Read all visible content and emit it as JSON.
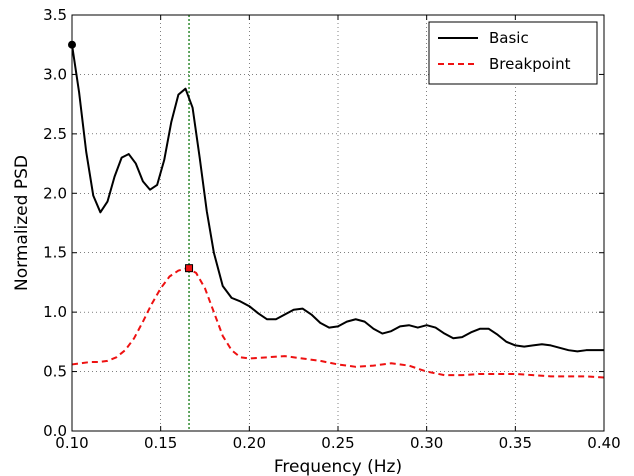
{
  "chart_data": {
    "type": "line",
    "title": "",
    "xlabel": "Frequency (Hz)",
    "ylabel": "Normalized PSD",
    "xlim": [
      0.1,
      0.4
    ],
    "ylim": [
      0.0,
      3.5
    ],
    "xticks": [
      0.1,
      0.15,
      0.2,
      0.25,
      0.3,
      0.35,
      0.4
    ],
    "xtick_labels": [
      "0.10",
      "0.15",
      "0.20",
      "0.25",
      "0.30",
      "0.35",
      "0.40"
    ],
    "yticks": [
      0.0,
      0.5,
      1.0,
      1.5,
      2.0,
      2.5,
      3.0,
      3.5
    ],
    "ytick_labels": [
      "0.0",
      "0.5",
      "1.0",
      "1.5",
      "2.0",
      "2.5",
      "3.0",
      "3.5"
    ],
    "grid": true,
    "legend_position": "top-right",
    "vline": {
      "x": 0.166,
      "color": "#2e8b2e",
      "style": "dotted"
    },
    "series": [
      {
        "name": "Basic",
        "color": "#000000",
        "style": "solid",
        "marker": {
          "x": 0.1,
          "y": 3.25,
          "shape": "circle"
        },
        "x": [
          0.1,
          0.104,
          0.108,
          0.112,
          0.116,
          0.12,
          0.124,
          0.128,
          0.132,
          0.136,
          0.14,
          0.144,
          0.148,
          0.152,
          0.156,
          0.16,
          0.164,
          0.168,
          0.172,
          0.176,
          0.18,
          0.185,
          0.19,
          0.195,
          0.2,
          0.205,
          0.21,
          0.215,
          0.22,
          0.225,
          0.23,
          0.235,
          0.24,
          0.245,
          0.25,
          0.255,
          0.26,
          0.265,
          0.27,
          0.275,
          0.28,
          0.285,
          0.29,
          0.295,
          0.3,
          0.305,
          0.31,
          0.315,
          0.32,
          0.325,
          0.33,
          0.335,
          0.34,
          0.345,
          0.35,
          0.355,
          0.36,
          0.365,
          0.37,
          0.375,
          0.38,
          0.385,
          0.39,
          0.395,
          0.4
        ],
        "y": [
          3.25,
          2.85,
          2.35,
          1.98,
          1.84,
          1.93,
          2.14,
          2.3,
          2.33,
          2.25,
          2.1,
          2.03,
          2.07,
          2.28,
          2.6,
          2.83,
          2.88,
          2.72,
          2.3,
          1.85,
          1.5,
          1.22,
          1.12,
          1.09,
          1.05,
          0.99,
          0.94,
          0.94,
          0.98,
          1.02,
          1.03,
          0.98,
          0.91,
          0.87,
          0.88,
          0.92,
          0.94,
          0.92,
          0.86,
          0.82,
          0.84,
          0.88,
          0.89,
          0.87,
          0.89,
          0.87,
          0.82,
          0.78,
          0.79,
          0.83,
          0.86,
          0.86,
          0.81,
          0.75,
          0.72,
          0.71,
          0.72,
          0.73,
          0.72,
          0.7,
          0.68,
          0.67,
          0.68,
          0.68,
          0.68
        ]
      },
      {
        "name": "Breakpoint",
        "color": "#ee1111",
        "style": "dashed",
        "marker": {
          "x": 0.166,
          "y": 1.37,
          "shape": "square"
        },
        "x": [
          0.1,
          0.105,
          0.11,
          0.115,
          0.12,
          0.125,
          0.13,
          0.135,
          0.14,
          0.145,
          0.15,
          0.155,
          0.16,
          0.165,
          0.17,
          0.175,
          0.18,
          0.185,
          0.19,
          0.195,
          0.2,
          0.21,
          0.22,
          0.23,
          0.24,
          0.25,
          0.26,
          0.27,
          0.28,
          0.29,
          0.3,
          0.31,
          0.32,
          0.33,
          0.34,
          0.35,
          0.36,
          0.37,
          0.38,
          0.39,
          0.4
        ],
        "y": [
          0.56,
          0.57,
          0.58,
          0.58,
          0.59,
          0.62,
          0.68,
          0.78,
          0.92,
          1.07,
          1.2,
          1.3,
          1.35,
          1.37,
          1.33,
          1.2,
          1.0,
          0.8,
          0.68,
          0.62,
          0.61,
          0.62,
          0.63,
          0.61,
          0.59,
          0.56,
          0.54,
          0.55,
          0.57,
          0.55,
          0.5,
          0.47,
          0.47,
          0.48,
          0.48,
          0.48,
          0.47,
          0.46,
          0.46,
          0.46,
          0.45
        ]
      }
    ]
  }
}
